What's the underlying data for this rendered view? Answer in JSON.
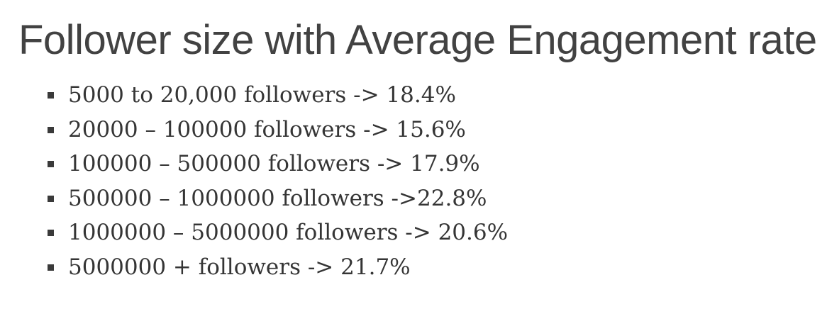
{
  "title": "Follower size with Average Engagement rate",
  "items": [
    {
      "text": "5000 to 20,000 followers -> 18.4%"
    },
    {
      "text": "20000 – 100000 followers -> 15.6%"
    },
    {
      "text": "100000 – 500000 followers -> 17.9%"
    },
    {
      "text": "500000 – 1000000 followers ->22.8%"
    },
    {
      "text": "1000000 – 5000000 followers -> 20.6%"
    },
    {
      "text": "5000000 + followers -> 21.7%"
    }
  ],
  "bullet_icon": "square-bullet-icon",
  "colors": {
    "title": "#424242",
    "text": "#353535",
    "bullet": "#3a3a3a",
    "background": "#ffffff"
  }
}
